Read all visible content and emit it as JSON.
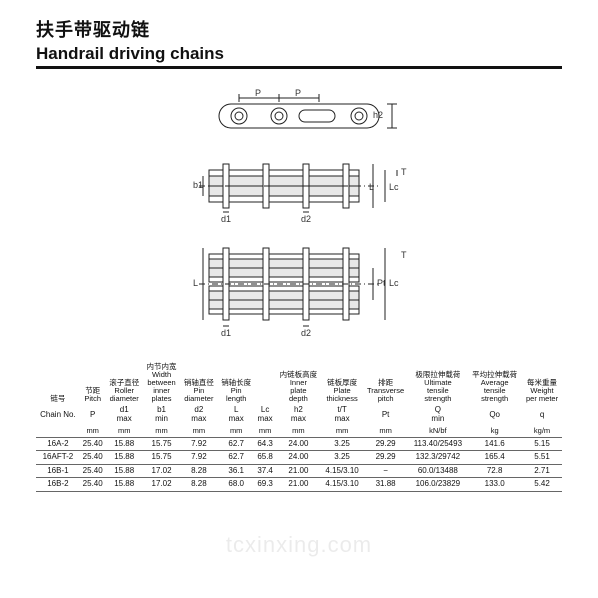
{
  "title_cn": "扶手带驱动链",
  "title_en": "Handrail driving chains",
  "watermark": "tcxinxing.com",
  "dim_labels": {
    "P": "P",
    "h2": "h2",
    "b1": "b1",
    "d1": "d1",
    "d2": "d2",
    "L": "L",
    "Lc": "Lc",
    "Pt": "Pt",
    "T": "T"
  },
  "table": {
    "headers_row1": [
      "链号",
      "节距\nPitch",
      "滚子直径\nRoller\ndiameter",
      "内节内宽\nWidth\nbetween\ninner\nplates",
      "销轴直径\nPin\ndiameter",
      "销轴长度\nPin\nlength",
      "",
      "内链板高度\nInner\nplate\ndepth",
      "链板厚度\nPlate\nthickness",
      "排距\nTransverse\npitch",
      "极限拉伸载荷\nUltimate\ntensile\nstrength",
      "平均拉伸载荷\nAverage\ntensile\nstrength",
      "每米重量\nWeight\nper meter"
    ],
    "headers_row2": [
      "Chain No.",
      "P",
      "d1\nmax",
      "b1\nmin",
      "d2\nmax",
      "L\nmax",
      "Lc\nmax",
      "h2\nmax",
      "t/T\nmax",
      "Pt",
      "Q\nmin",
      "Qo",
      "q"
    ],
    "headers_row3": [
      "",
      "mm",
      "mm",
      "mm",
      "mm",
      "mm",
      "mm",
      "mm",
      "mm",
      "mm",
      "kN/bf",
      "kg",
      "kg/m"
    ],
    "rows": [
      [
        "16A-2",
        "25.40",
        "15.88",
        "15.75",
        "7.92",
        "62.7",
        "64.3",
        "24.00",
        "3.25",
        "29.29",
        "113.40/25493",
        "141.6",
        "5.15"
      ],
      [
        "16AFT-2",
        "25.40",
        "15.88",
        "15.75",
        "7.92",
        "62.7",
        "65.8",
        "24.00",
        "3.25",
        "29.29",
        "132.3/29742",
        "165.4",
        "5.51"
      ],
      [
        "16B-1",
        "25.40",
        "15.88",
        "17.02",
        "8.28",
        "36.1",
        "37.4",
        "21.00",
        "4.15/3.10",
        "−",
        "60.0/13488",
        "72.8",
        "2.71"
      ],
      [
        "16B-2",
        "25.40",
        "15.88",
        "17.02",
        "8.28",
        "68.0",
        "69.3",
        "21.00",
        "4.15/3.10",
        "31.88",
        "106.0/23829",
        "133.0",
        "5.42"
      ]
    ]
  }
}
